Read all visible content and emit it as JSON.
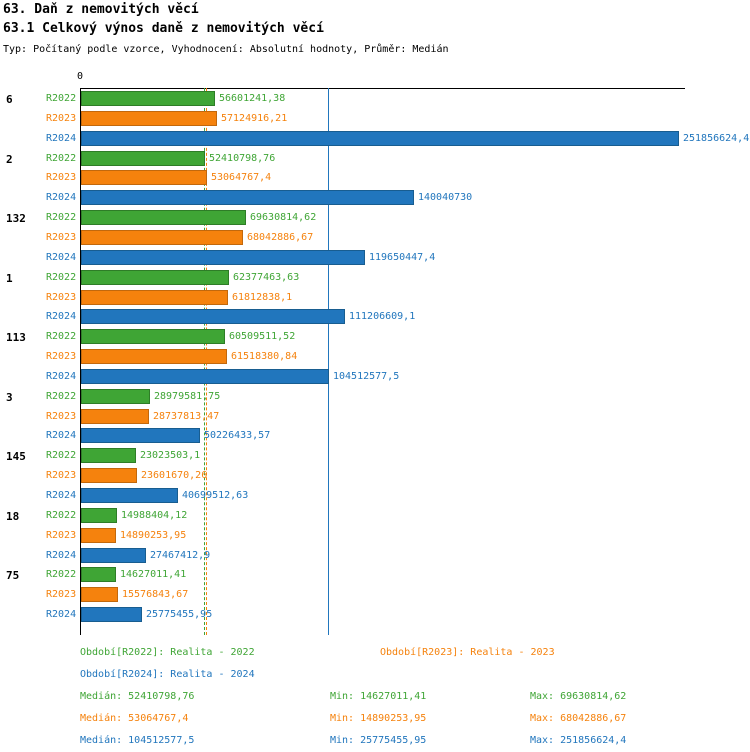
{
  "header": {
    "title": "63. Daň z nemovitých věcí",
    "subtitle": "63.1 Celkový výnos daně z nemovitých věcí",
    "meta": "Typ: Počítaný podle vzorce, Vyhodnocení: Absolutní hodnoty, Průměr: Medián"
  },
  "axis": {
    "origin_label": "0",
    "x_min": 0
  },
  "colors": {
    "R2022": "#3fa535",
    "R2023": "#f5820d",
    "R2024": "#2176bd"
  },
  "border_colors": {
    "R2022": "#2e7d27",
    "R2023": "#c2680c",
    "R2024": "#185d90"
  },
  "chart_data": {
    "type": "bar",
    "orientation": "horizontal",
    "title": "63.1 Celkový výnos daně z nemovitých věcí",
    "series_names": [
      "R2022",
      "R2023",
      "R2024"
    ],
    "x_max": 251856624.4,
    "grid": false,
    "groups": [
      {
        "category": "6",
        "values": [
          56601241.38,
          57124916.21,
          251856624.4
        ],
        "labels": [
          "56601241,38",
          "57124916,21",
          "251856624,4"
        ]
      },
      {
        "category": "2",
        "values": [
          52410798.76,
          53064767.4,
          140040730
        ],
        "labels": [
          "52410798,76",
          "53064767,4",
          "140040730"
        ]
      },
      {
        "category": "132",
        "values": [
          69630814.62,
          68042886.67,
          119650447.4
        ],
        "labels": [
          "69630814,62",
          "68042886,67",
          "119650447,4"
        ]
      },
      {
        "category": "1",
        "values": [
          62377463.63,
          61812838.1,
          111206609.1
        ],
        "labels": [
          "62377463,63",
          "61812838,1",
          "111206609,1"
        ]
      },
      {
        "category": "113",
        "values": [
          60509511.52,
          61518380.84,
          104512577.5
        ],
        "labels": [
          "60509511,52",
          "61518380,84",
          "104512577,5"
        ]
      },
      {
        "category": "3",
        "values": [
          28979581.75,
          28737813.47,
          50226433.57
        ],
        "labels": [
          "28979581,75",
          "28737813,47",
          "50226433,57"
        ]
      },
      {
        "category": "145",
        "values": [
          23023503.1,
          23601670.26,
          40699512.63
        ],
        "labels": [
          "23023503,1",
          "23601670,26",
          "40699512,63"
        ]
      },
      {
        "category": "18",
        "values": [
          14988404.12,
          14890253.95,
          27467412.9
        ],
        "labels": [
          "14988404,12",
          "14890253,95",
          "27467412,9"
        ]
      },
      {
        "category": "75",
        "values": [
          14627011.41,
          15576843.67,
          25775455.95
        ],
        "labels": [
          "14627011,41",
          "15576843,67",
          "25775455,95"
        ]
      }
    ],
    "median_lines": [
      {
        "series": "R2022",
        "value": 52410798.76,
        "style": "dashed"
      },
      {
        "series": "R2023",
        "value": 53064767.4,
        "style": "dashed"
      },
      {
        "series": "R2024",
        "value": 104512577.5,
        "style": "solid"
      }
    ]
  },
  "legend": [
    {
      "series": "R2022",
      "label": "Období[R2022]: Realita - 2022"
    },
    {
      "series": "R2023",
      "label": "Období[R2023]: Realita - 2023"
    },
    {
      "series": "R2024",
      "label": "Období[R2024]: Realita - 2024"
    }
  ],
  "stats": [
    {
      "series": "R2022",
      "median": "Medián: 52410798,76",
      "min": "Min: 14627011,41",
      "max": "Max: 69630814,62"
    },
    {
      "series": "R2023",
      "median": "Medián: 53064767,4",
      "min": "Min: 14890253,95",
      "max": "Max: 68042886,67"
    },
    {
      "series": "R2024",
      "median": "Medián: 104512577,5",
      "min": "Min: 25775455,95",
      "max": "Max: 251856624,4"
    }
  ]
}
